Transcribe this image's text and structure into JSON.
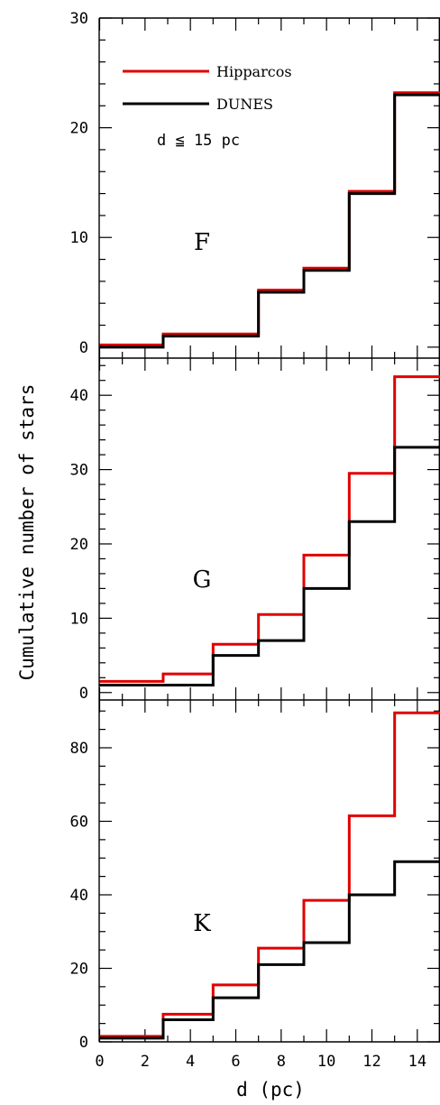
{
  "figure": {
    "xlabel": "d (pc)",
    "ylabel": "Cumulative number of stars"
  },
  "legend": {
    "items": [
      {
        "label": "Hipparcos",
        "color": "#e00000"
      },
      {
        "label": "DUNES",
        "color": "#000000"
      }
    ],
    "condition": "d ≦ 15 pc",
    "placement": "top-left of top panel"
  },
  "chart_data": [
    {
      "type": "line",
      "step": true,
      "panel_label": "F",
      "xlim": [
        0,
        15
      ],
      "ylim": [
        -1,
        30
      ],
      "x_ticks": [
        0,
        2,
        4,
        6,
        8,
        10,
        12,
        14
      ],
      "y_ticks": [
        0,
        10,
        20,
        30
      ],
      "y_minor_step": 2,
      "x_minor_step": 1,
      "series": [
        {
          "name": "Hipparcos",
          "color": "#e00000",
          "x": [
            0,
            2.8,
            7,
            9,
            11,
            13,
            15
          ],
          "values": [
            0.2,
            1.2,
            5.2,
            7.2,
            14.2,
            23.2,
            23.2
          ]
        },
        {
          "name": "DUNES",
          "color": "#000000",
          "x": [
            0,
            2.8,
            7,
            9,
            11,
            13,
            15
          ],
          "values": [
            0,
            1,
            5,
            7,
            14,
            23,
            23
          ]
        }
      ]
    },
    {
      "type": "line",
      "step": true,
      "panel_label": "G",
      "xlim": [
        0,
        15
      ],
      "ylim": [
        -1,
        45
      ],
      "x_ticks": [
        0,
        2,
        4,
        6,
        8,
        10,
        12,
        14
      ],
      "y_ticks": [
        0,
        10,
        20,
        30,
        40
      ],
      "y_minor_step": 2,
      "x_minor_step": 1,
      "series": [
        {
          "name": "Hipparcos",
          "color": "#e00000",
          "x": [
            0,
            2.8,
            5,
            7,
            9,
            11,
            13,
            15
          ],
          "values": [
            1.5,
            2.5,
            6.5,
            10.5,
            18.5,
            29.5,
            42.5,
            42.5
          ]
        },
        {
          "name": "DUNES",
          "color": "#000000",
          "x": [
            0,
            5,
            7,
            9,
            11,
            13,
            15
          ],
          "values": [
            1,
            5,
            7,
            14,
            23,
            33,
            33
          ]
        }
      ]
    },
    {
      "type": "line",
      "step": true,
      "panel_label": "K",
      "xlim": [
        0,
        15
      ],
      "ylim": [
        0,
        93
      ],
      "x_ticks": [
        0,
        2,
        4,
        6,
        8,
        10,
        12,
        14
      ],
      "y_ticks": [
        0,
        20,
        40,
        60,
        80
      ],
      "y_minor_step": 5,
      "x_minor_step": 1,
      "series": [
        {
          "name": "Hipparcos",
          "color": "#e00000",
          "x": [
            0,
            2.8,
            5,
            7,
            9,
            11,
            13,
            15
          ],
          "values": [
            1.5,
            7.5,
            15.5,
            25.5,
            38.5,
            61.5,
            89.5,
            89.5
          ]
        },
        {
          "name": "DUNES",
          "color": "#000000",
          "x": [
            0,
            2.8,
            5,
            7,
            9,
            11,
            13,
            15
          ],
          "values": [
            1,
            6,
            12,
            21,
            27,
            40,
            49,
            49
          ]
        }
      ]
    }
  ]
}
